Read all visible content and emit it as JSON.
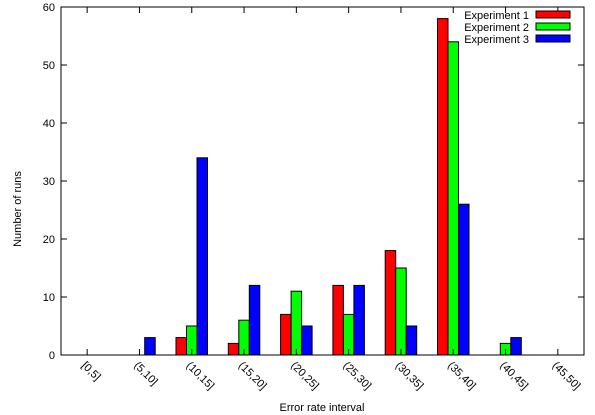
{
  "chart_data": {
    "type": "bar",
    "xlabel": "Error rate interval",
    "ylabel": "Number of runs",
    "ylim": [
      0,
      60
    ],
    "yticks": [
      0,
      10,
      20,
      30,
      40,
      50,
      60
    ],
    "grid": false,
    "legend_position": "top-right",
    "categories": [
      "[0,5]",
      "(5,10]",
      "(10,15]",
      "(15,20]",
      "(20,25]",
      "(25,30]",
      "(30,35]",
      "(35,40]",
      "(40,45]",
      "(45,50]"
    ],
    "series": [
      {
        "name": "Experiment 1",
        "color": "#ff0000",
        "values": [
          0,
          0,
          3,
          2,
          7,
          12,
          18,
          58,
          0,
          0
        ]
      },
      {
        "name": "Experiment 2",
        "color": "#00ff00",
        "values": [
          0,
          0,
          5,
          6,
          11,
          7,
          15,
          54,
          2,
          0
        ]
      },
      {
        "name": "Experiment 3",
        "color": "#0000ff",
        "values": [
          0,
          3,
          34,
          12,
          5,
          12,
          5,
          26,
          3,
          0
        ]
      }
    ]
  }
}
